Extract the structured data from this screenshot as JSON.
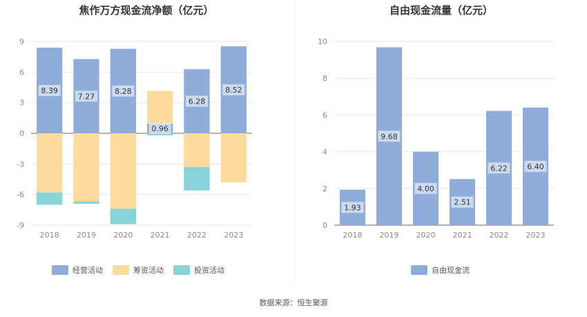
{
  "source_text": "数据来源：恒生聚源",
  "chart_data": [
    {
      "type": "bar",
      "title": "焦作万方现金流净额（亿元）",
      "categories": [
        "2018",
        "2019",
        "2020",
        "2021",
        "2022",
        "2023"
      ],
      "ylim": [
        -9,
        9
      ],
      "yticks": [
        9,
        6,
        3,
        0,
        -3,
        -6,
        -9
      ],
      "grid": true,
      "legend_position": "bottom",
      "stacked": true,
      "series": [
        {
          "name": "经营活动",
          "color": "#8eaddb",
          "values": [
            8.39,
            7.27,
            8.28,
            0.96,
            6.28,
            8.52
          ]
        },
        {
          "name": "筹资活动",
          "color": "#fddb9e",
          "values": [
            -5.8,
            -6.7,
            -7.4,
            3.2,
            -3.3,
            -4.8
          ]
        },
        {
          "name": "投资活动",
          "color": "#86d3d8",
          "values": [
            -1.2,
            -0.2,
            -1.5,
            -0.2,
            -2.3,
            0
          ]
        }
      ],
      "data_labels": [
        "8.39",
        "7.27",
        "8.28",
        "0.96",
        "6.28",
        "8.52"
      ]
    },
    {
      "type": "bar",
      "title": "自由现金流量（亿元）",
      "categories": [
        "2018",
        "2019",
        "2020",
        "2021",
        "2022",
        "2023"
      ],
      "ylim": [
        0,
        10
      ],
      "yticks": [
        10,
        8,
        6,
        4,
        2,
        0
      ],
      "grid": true,
      "legend_position": "bottom",
      "series": [
        {
          "name": "自由现金流",
          "color": "#8eaddb",
          "values": [
            1.93,
            9.68,
            4.0,
            2.51,
            6.22,
            6.4
          ]
        }
      ],
      "data_labels": [
        "1.93",
        "9.68",
        "4.00",
        "2.51",
        "6.22",
        "6.40"
      ]
    }
  ]
}
